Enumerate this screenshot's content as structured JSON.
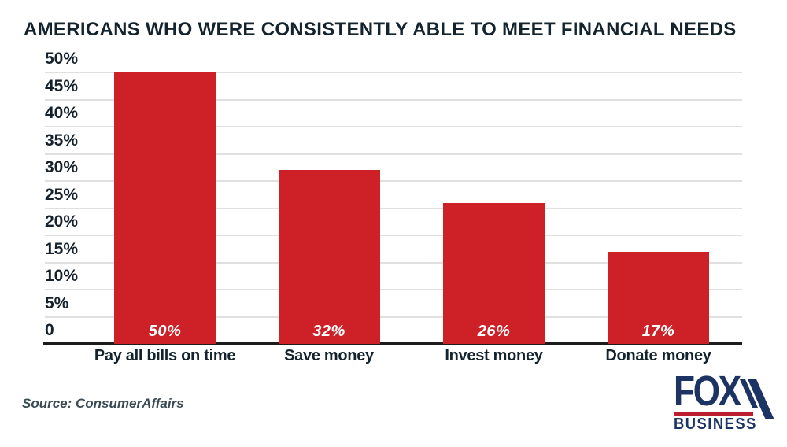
{
  "title": "AMERICANS WHO WERE CONSISTENTLY ABLE TO MEET FINANCIAL NEEDS",
  "source_text": "Source: ConsumerAffairs",
  "logo": {
    "fox": "FOX",
    "business": "BUSINESS"
  },
  "colors": {
    "bar_red": "#cd2127",
    "heading_navy": "#13242f",
    "gridline_gray": "#e0e0e0",
    "axis_black": "#1c1c1c",
    "value_label_white": "#ffffff",
    "source_gray": "#3a4b55",
    "logo_navy": "#1c3464",
    "logo_red": "#bb1f30"
  },
  "chart_data": {
    "type": "bar",
    "title": "AMERICANS WHO WERE CONSISTENTLY ABLE TO MEET FINANCIAL NEEDS",
    "categories": [
      "Pay all bills on time",
      "Save money",
      "Invest money",
      "Donate money"
    ],
    "values": [
      50,
      32,
      26,
      17
    ],
    "value_labels": [
      "50%",
      "32%",
      "26%",
      "17%"
    ],
    "xlabel": "",
    "ylabel": "",
    "ylim": [
      0,
      50
    ],
    "y_tick_interval": 5,
    "y_ticks": [
      {
        "value": 50,
        "label": "50%"
      },
      {
        "value": 45,
        "label": "45%"
      },
      {
        "value": 40,
        "label": "40%"
      },
      {
        "value": 35,
        "label": "35%"
      },
      {
        "value": 30,
        "label": "30%"
      },
      {
        "value": 25,
        "label": "25%"
      },
      {
        "value": 20,
        "label": "20%"
      },
      {
        "value": 15,
        "label": "15%"
      },
      {
        "value": 10,
        "label": "10%"
      },
      {
        "value": 5,
        "label": "5%"
      },
      {
        "value": 0,
        "label": "0"
      }
    ],
    "grid": "horizontal",
    "legend": "none",
    "bar_color": "#cd2127",
    "value_labels_position": "inside-bottom"
  }
}
